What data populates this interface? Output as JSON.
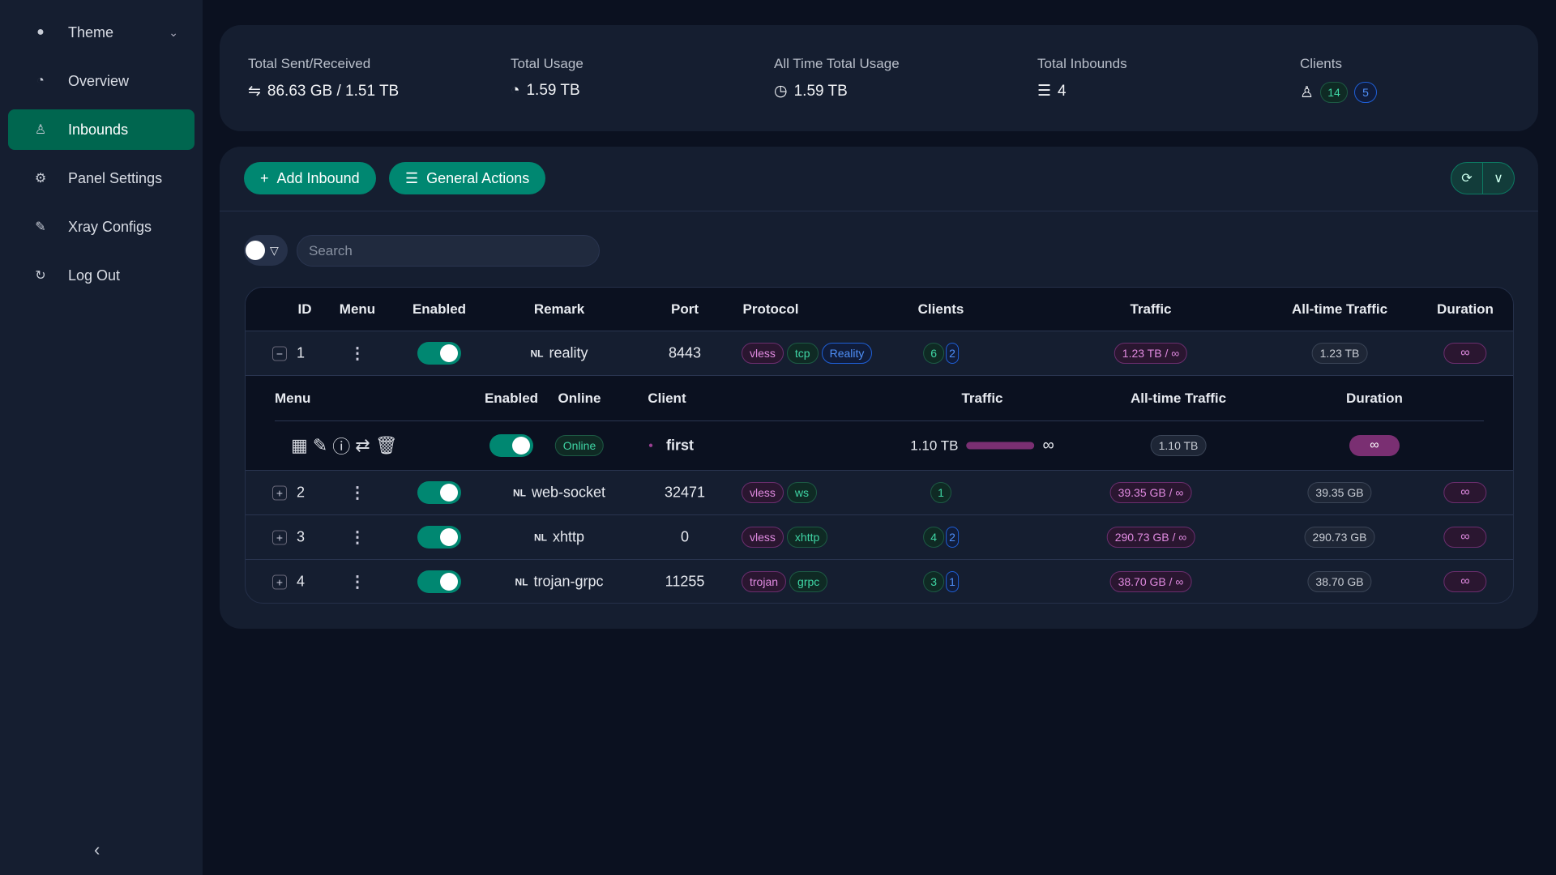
{
  "sidebar": {
    "items": [
      {
        "label": "Theme",
        "icon": "bulb-icon"
      },
      {
        "label": "Overview",
        "icon": "dashboard-icon"
      },
      {
        "label": "Inbounds",
        "icon": "user-icon",
        "selected": true
      },
      {
        "label": "Panel Settings",
        "icon": "gear-icon"
      },
      {
        "label": "Xray Configs",
        "icon": "tool-icon"
      },
      {
        "label": "Log Out",
        "icon": "logout-icon"
      }
    ]
  },
  "stats": {
    "sent_received": {
      "label": "Total Sent/Received",
      "value": "86.63 GB / 1.51 TB"
    },
    "total_usage": {
      "label": "Total Usage",
      "value": "1.59 TB"
    },
    "all_time": {
      "label": "All Time Total Usage",
      "value": "1.59 TB"
    },
    "inbounds": {
      "label": "Total Inbounds",
      "value": "4"
    },
    "clients": {
      "label": "Clients",
      "total": "14",
      "online": "5"
    }
  },
  "toolbar": {
    "add": "Add Inbound",
    "general": "General Actions",
    "search_placeholder": "Search"
  },
  "table": {
    "headers": [
      "ID",
      "Menu",
      "Enabled",
      "Remark",
      "Port",
      "Protocol",
      "Clients",
      "Traffic",
      "All-time Traffic",
      "Duration"
    ],
    "rows": [
      {
        "id": "1",
        "flag": "NL",
        "remark": "reality",
        "port": "8443",
        "protocols": [
          "vless",
          "tcp",
          "Reality"
        ],
        "clients": "6",
        "online": "2",
        "traffic": "1.23 TB / ∞",
        "alltime": "1.23 TB",
        "duration": "∞"
      },
      {
        "id": "2",
        "flag": "NL",
        "remark": "web-socket",
        "port": "32471",
        "protocols": [
          "vless",
          "ws"
        ],
        "clients": "1",
        "online": "",
        "traffic": "39.35 GB / ∞",
        "alltime": "39.35 GB",
        "duration": "∞"
      },
      {
        "id": "3",
        "flag": "NL",
        "remark": "xhttp",
        "port": "0",
        "protocols": [
          "vless",
          "xhttp"
        ],
        "clients": "4",
        "online": "2",
        "traffic": "290.73 GB / ∞",
        "alltime": "290.73 GB",
        "duration": "∞"
      },
      {
        "id": "4",
        "flag": "NL",
        "remark": "trojan-grpc",
        "port": "11255",
        "protocols": [
          "trojan",
          "grpc"
        ],
        "clients": "3",
        "online": "1",
        "traffic": "38.70 GB / ∞",
        "alltime": "38.70 GB",
        "duration": "∞"
      }
    ],
    "sub": {
      "headers": [
        "Menu",
        "Enabled",
        "Online",
        "Client",
        "Traffic",
        "All-time Traffic",
        "Duration"
      ],
      "client": {
        "status": "Online",
        "name": "first",
        "traffic": "1.10 TB",
        "limit": "∞",
        "alltime": "1.10 TB",
        "duration": "∞",
        "usage_fraction": 1.0
      }
    }
  }
}
